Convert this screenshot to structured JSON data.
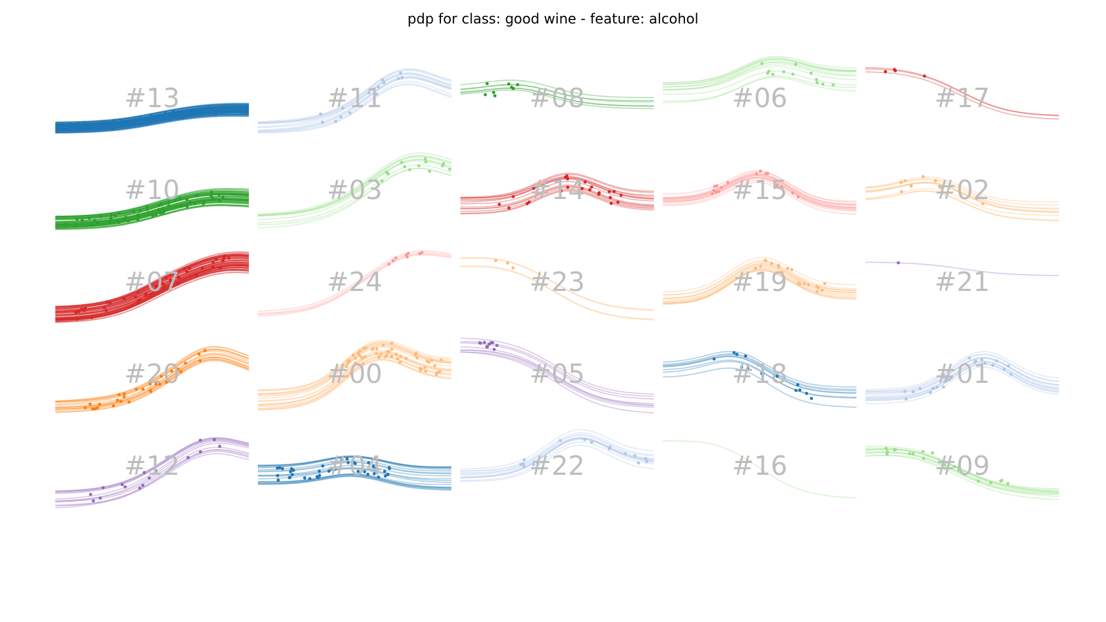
{
  "chart_data": {
    "type": "line",
    "title": "pdp for class: good wine - feature: alcohol",
    "xlabel": "",
    "ylabel": "",
    "layout": {
      "rows": 5,
      "cols": 5
    },
    "axes_visible": false,
    "grid": false,
    "legend": "none",
    "ylim": [
      0,
      1
    ],
    "xlim": [
      0,
      1
    ],
    "clusters": [
      {
        "label": "#13",
        "color": "#1f77b4",
        "n_lines": 70,
        "y_start": 0.1,
        "y_end": 0.35,
        "peak": 0.85,
        "amp": 0.02,
        "spread": 0.08,
        "n_points": 50,
        "point_x_range": [
          0.0,
          0.85
        ]
      },
      {
        "label": "#11",
        "color": "#aec7e8",
        "n_lines": 14,
        "y_start": 0.1,
        "y_end": 0.6,
        "peak": 0.75,
        "amp": 0.3,
        "spread": 0.12,
        "n_points": 14,
        "point_x_range": [
          0.3,
          0.85
        ]
      },
      {
        "label": "#08",
        "color": "#2ca02c",
        "n_lines": 6,
        "y_start": 0.6,
        "y_end": 0.4,
        "peak": 0.3,
        "amp": 0.1,
        "spread": 0.12,
        "n_points": 8,
        "point_x_range": [
          0.12,
          0.3
        ]
      },
      {
        "label": "#06",
        "color": "#98df8a",
        "n_lines": 12,
        "y_start": 0.6,
        "y_end": 0.8,
        "peak": 0.55,
        "amp": 0.25,
        "spread": 0.15,
        "n_points": 12,
        "point_x_range": [
          0.5,
          0.95
        ]
      },
      {
        "label": "#17",
        "color": "#d62728",
        "n_lines": 3,
        "y_start": 0.95,
        "y_end": 0.25,
        "peak": 0.1,
        "amp": 0.02,
        "spread": 0.05,
        "n_points": 4,
        "point_x_range": [
          0.1,
          0.35
        ]
      },
      {
        "label": "#10",
        "color": "#2ca02c",
        "n_lines": 40,
        "y_start": 0.05,
        "y_end": 0.4,
        "peak": 0.8,
        "amp": 0.05,
        "spread": 0.1,
        "n_points": 60,
        "point_x_range": [
          0.05,
          0.9
        ]
      },
      {
        "label": "#03",
        "color": "#98df8a",
        "n_lines": 10,
        "y_start": 0.05,
        "y_end": 0.7,
        "peak": 0.8,
        "amp": 0.25,
        "spread": 0.12,
        "n_points": 14,
        "point_x_range": [
          0.55,
          1.0
        ]
      },
      {
        "label": "#14",
        "color": "#d62728",
        "n_lines": 14,
        "y_start": 0.3,
        "y_end": 0.35,
        "peak": 0.55,
        "amp": 0.3,
        "spread": 0.14,
        "n_points": 24,
        "point_x_range": [
          0.2,
          0.85
        ]
      },
      {
        "label": "#15",
        "color": "#ff9896",
        "n_lines": 14,
        "y_start": 0.4,
        "y_end": 0.3,
        "peak": 0.5,
        "amp": 0.4,
        "spread": 0.1,
        "n_points": 16,
        "point_x_range": [
          0.25,
          0.75
        ]
      },
      {
        "label": "#02",
        "color": "#ffbb78",
        "n_lines": 10,
        "y_start": 0.5,
        "y_end": 0.25,
        "peak": 0.35,
        "amp": 0.2,
        "spread": 0.12,
        "n_points": 10,
        "point_x_range": [
          0.15,
          0.65
        ]
      },
      {
        "label": "#07",
        "color": "#d62728",
        "n_lines": 40,
        "y_start": 0.05,
        "y_end": 0.75,
        "peak": 0.9,
        "amp": 0.1,
        "spread": 0.12,
        "n_points": 50,
        "point_x_range": [
          0.1,
          0.9
        ]
      },
      {
        "label": "#24",
        "color": "#ff9896",
        "n_lines": 4,
        "y_start": 0.05,
        "y_end": 0.85,
        "peak": 0.8,
        "amp": 0.15,
        "spread": 0.05,
        "n_points": 8,
        "point_x_range": [
          0.6,
          0.9
        ]
      },
      {
        "label": "#23",
        "color": "#ffbb78",
        "n_lines": 4,
        "y_start": 0.8,
        "y_end": 0.05,
        "peak": 0.2,
        "amp": 0.05,
        "spread": 0.08,
        "n_points": 3,
        "point_x_range": [
          0.18,
          0.28
        ]
      },
      {
        "label": "#19",
        "color": "#ffbb78",
        "n_lines": 14,
        "y_start": 0.3,
        "y_end": 0.4,
        "peak": 0.5,
        "amp": 0.45,
        "spread": 0.1,
        "n_points": 20,
        "point_x_range": [
          0.4,
          0.85
        ]
      },
      {
        "label": "#21",
        "color": "#9467bd",
        "n_lines": 1,
        "y_start": 0.82,
        "y_end": 0.62,
        "peak": 0.5,
        "amp": 0.0,
        "spread": 0.0,
        "n_points": 1,
        "point_x_range": [
          0.17,
          0.17
        ]
      },
      {
        "label": "#20",
        "color": "#ff7f0e",
        "n_lines": 16,
        "y_start": 0.05,
        "y_end": 0.55,
        "peak": 0.8,
        "amp": 0.3,
        "spread": 0.1,
        "n_points": 30,
        "point_x_range": [
          0.15,
          0.8
        ]
      },
      {
        "label": "#00",
        "color": "#ffbb78",
        "n_lines": 20,
        "y_start": 0.15,
        "y_end": 0.6,
        "peak": 0.6,
        "amp": 0.4,
        "spread": 0.15,
        "n_points": 60,
        "point_x_range": [
          0.45,
          0.95
        ]
      },
      {
        "label": "#05",
        "color": "#9467bd",
        "n_lines": 8,
        "y_start": 0.95,
        "y_end": 0.1,
        "peak": 0.1,
        "amp": 0.02,
        "spread": 0.12,
        "n_points": 10,
        "point_x_range": [
          0.1,
          0.2
        ]
      },
      {
        "label": "#18",
        "color": "#1f77b4",
        "n_lines": 8,
        "y_start": 0.6,
        "y_end": 0.2,
        "peak": 0.4,
        "amp": 0.25,
        "spread": 0.12,
        "n_points": 14,
        "point_x_range": [
          0.25,
          0.85
        ]
      },
      {
        "label": "#01",
        "color": "#aec7e8",
        "n_lines": 14,
        "y_start": 0.2,
        "y_end": 0.3,
        "peak": 0.6,
        "amp": 0.45,
        "spread": 0.12,
        "n_points": 26,
        "point_x_range": [
          0.2,
          0.8
        ]
      },
      {
        "label": "#12",
        "color": "#9467bd",
        "n_lines": 12,
        "y_start": 0.05,
        "y_end": 0.7,
        "peak": 0.8,
        "amp": 0.2,
        "spread": 0.14,
        "n_points": 16,
        "point_x_range": [
          0.15,
          0.95
        ]
      },
      {
        "label": "#04",
        "color": "#1f77b4",
        "n_lines": 20,
        "y_start": 0.4,
        "y_end": 0.35,
        "peak": 0.5,
        "amp": 0.15,
        "spread": 0.14,
        "n_points": 40,
        "point_x_range": [
          0.1,
          0.7
        ]
      },
      {
        "label": "#22",
        "color": "#aec7e8",
        "n_lines": 12,
        "y_start": 0.4,
        "y_end": 0.6,
        "peak": 0.6,
        "amp": 0.4,
        "spread": 0.12,
        "n_points": 16,
        "point_x_range": [
          0.3,
          1.0
        ]
      },
      {
        "label": "#16",
        "color": "#98df8a",
        "n_lines": 1,
        "y_start": 0.9,
        "y_end": 0.05,
        "peak": 0.3,
        "amp": 0.05,
        "spread": 0.0,
        "n_points": 1,
        "point_x_range": [
          0.45,
          0.45
        ]
      },
      {
        "label": "#09",
        "color": "#98df8a",
        "n_lines": 10,
        "y_start": 0.75,
        "y_end": 0.15,
        "peak": 0.2,
        "amp": 0.05,
        "spread": 0.1,
        "n_points": 20,
        "point_x_range": [
          0.1,
          0.75
        ]
      }
    ]
  }
}
